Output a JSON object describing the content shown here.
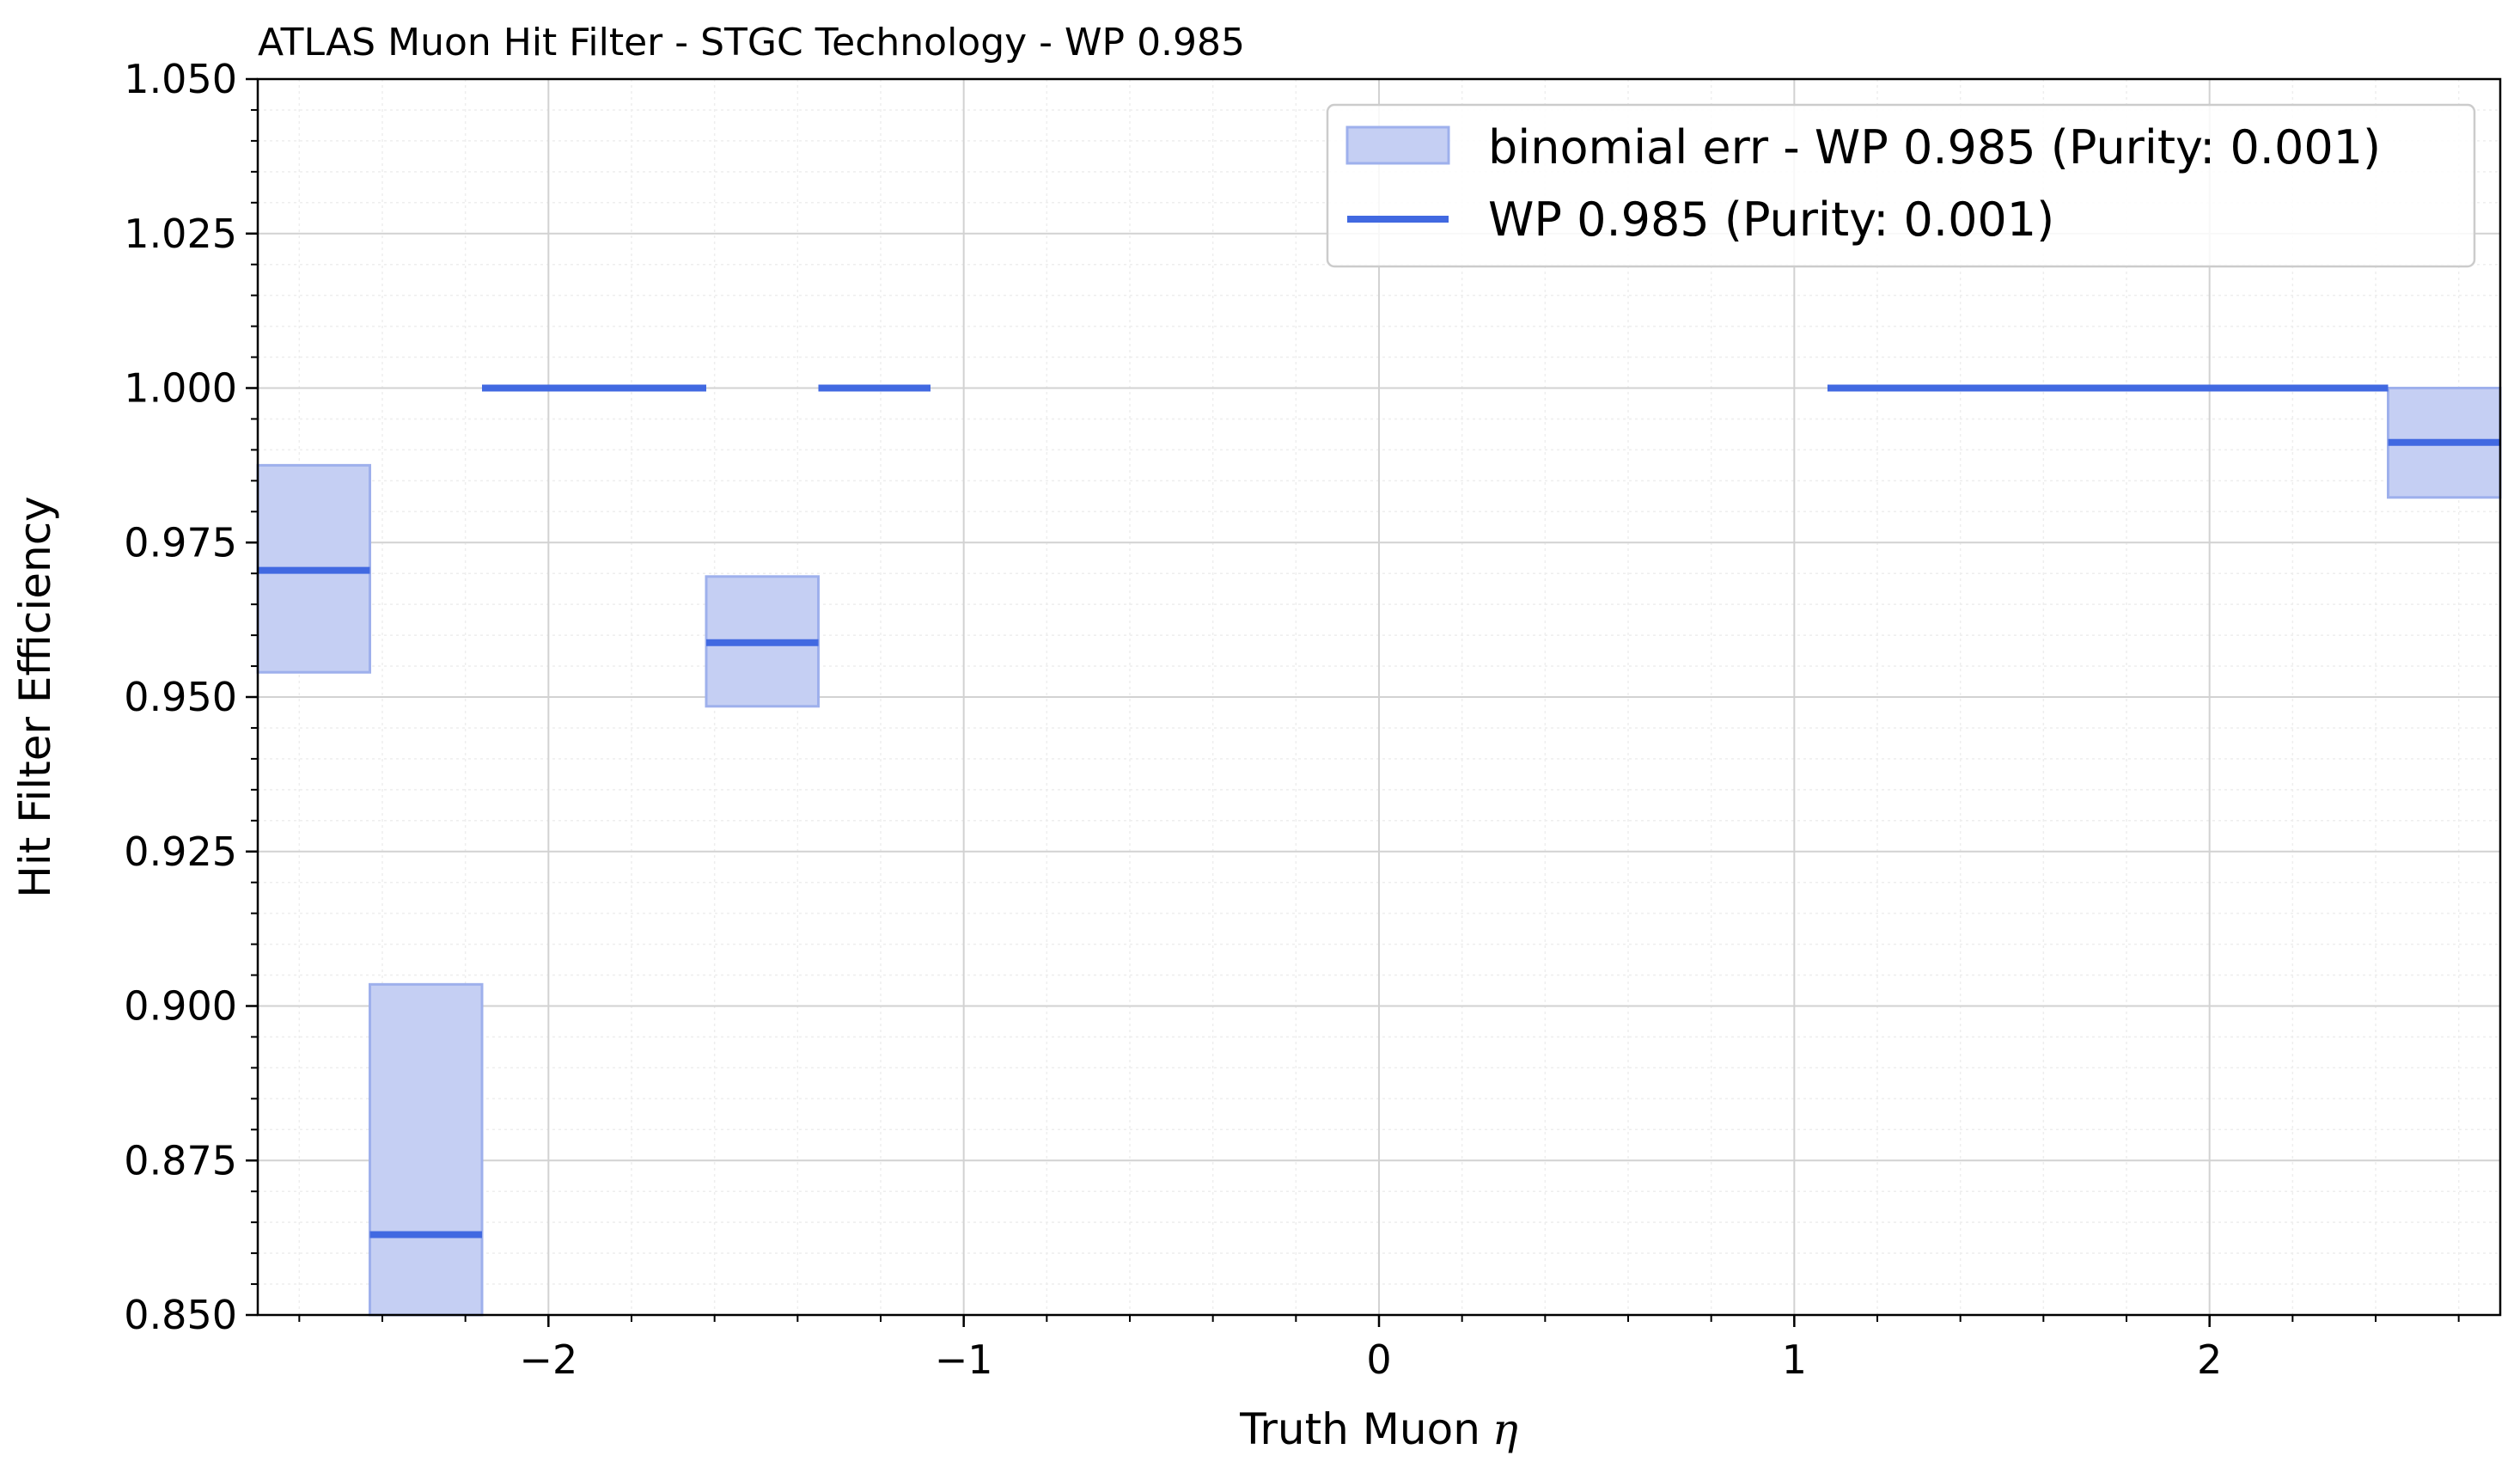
{
  "chart_data": {
    "type": "step-with-error-band",
    "title": "ATLAS Muon Hit Filter - STGC Technology - WP 0.985",
    "xlabel": "Truth Muon",
    "xlabel_symbol": "η",
    "ylabel": "Hit Filter Efficiency",
    "xlim": [
      -2.7,
      2.7
    ],
    "ylim": [
      0.85,
      1.05
    ],
    "xticks": [
      -2,
      -1,
      0,
      1,
      2
    ],
    "xtick_labels": [
      "−2",
      "−1",
      "0",
      "1",
      "2"
    ],
    "yticks": [
      0.85,
      0.875,
      0.9,
      0.925,
      0.95,
      0.975,
      1.0,
      1.025,
      1.05
    ],
    "ytick_labels": [
      "0.850",
      "0.875",
      "0.900",
      "0.925",
      "0.950",
      "0.975",
      "1.000",
      "1.025",
      "1.050"
    ],
    "grid": true,
    "minor_grid": true,
    "legend_position": "top-right",
    "colors": {
      "line": "#4169e1",
      "band": "#c5cff3",
      "band_edge": "#9eb0ec"
    },
    "legend": [
      {
        "label": "binomial err - WP 0.985 (Purity: 0.001)",
        "kind": "band"
      },
      {
        "label": "WP 0.985 (Purity: 0.001)",
        "kind": "line"
      }
    ],
    "bins": [
      {
        "x0": -2.7,
        "x1": -2.43,
        "eff": 0.9705,
        "lo": 0.954,
        "hi": 0.9875
      },
      {
        "x0": -2.43,
        "x1": -2.16,
        "eff": 0.863,
        "lo": 0.85,
        "hi": 0.9035
      },
      {
        "x0": -2.16,
        "x1": -1.62,
        "eff": 1.0,
        "lo": 1.0,
        "hi": 1.0
      },
      {
        "x0": -1.62,
        "x1": -1.35,
        "eff": 0.9588,
        "lo": 0.9485,
        "hi": 0.9695
      },
      {
        "x0": -1.35,
        "x1": -1.08,
        "eff": 1.0,
        "lo": 1.0,
        "hi": 1.0
      },
      {
        "x0": 1.08,
        "x1": 2.43,
        "eff": 1.0,
        "lo": 1.0,
        "hi": 1.0
      },
      {
        "x0": 2.43,
        "x1": 2.7,
        "eff": 0.9912,
        "lo": 0.9823,
        "hi": 1.0
      }
    ]
  }
}
